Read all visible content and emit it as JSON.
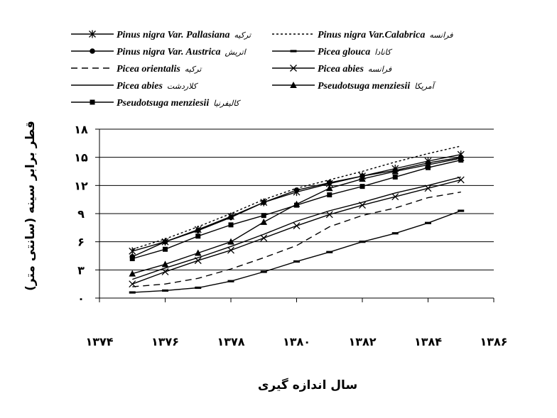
{
  "chart_data": {
    "type": "line",
    "xlabel": "سال اندازه گیری",
    "ylabel": "قطر برابر سینه (سانتی متر)",
    "xlim": [
      1374,
      1386
    ],
    "ylim": [
      0,
      18
    ],
    "x_ticks": [
      "۱۳۷۴",
      "۱۳۷۶",
      "۱۳۷۸",
      "۱۳۸۰",
      "۱۳۸۲",
      "۱۳۸۴",
      "۱۳۸۶"
    ],
    "y_ticks": [
      "۰",
      "۳",
      "۶",
      "۹",
      "۱۲",
      "۱۵",
      "۱۸"
    ],
    "grid": "horizontal",
    "legend_position": "top",
    "x": [
      1375,
      1376,
      1377,
      1378,
      1379,
      1380,
      1381,
      1382,
      1383,
      1384,
      1385
    ],
    "series": [
      {
        "name": "Pinus nigra Var. Pallasiana",
        "origin": "ترکیه",
        "style": "solid",
        "marker": "star",
        "values": [
          5.0,
          6.0,
          7.3,
          8.7,
          10.2,
          11.3,
          12.2,
          13.0,
          13.8,
          14.6,
          15.3
        ]
      },
      {
        "name": "Pinus nigra Var.Calabrica",
        "origin": "فرانسه",
        "style": "dotted",
        "marker": "none",
        "values": [
          5.2,
          6.3,
          7.6,
          9.0,
          10.5,
          11.7,
          12.6,
          13.5,
          14.5,
          15.4,
          16.2
        ]
      },
      {
        "name": "Pinus nigra Var. Austrica",
        "origin": "اتریش",
        "style": "solid",
        "marker": "circle",
        "values": [
          4.4,
          6.0,
          7.2,
          8.6,
          10.2,
          11.5,
          12.3,
          13.0,
          13.6,
          14.4,
          15.0
        ]
      },
      {
        "name": "Picea glouca",
        "origin": "کانادا",
        "style": "solid",
        "marker": "dash",
        "values": [
          0.6,
          0.8,
          1.1,
          1.8,
          2.8,
          3.9,
          4.9,
          6.0,
          6.9,
          8.0,
          9.3
        ]
      },
      {
        "name": "Picea orientalis",
        "origin": "ترکیه",
        "style": "dashed",
        "marker": "none",
        "values": [
          1.2,
          1.5,
          2.1,
          3.1,
          4.3,
          5.6,
          7.6,
          8.8,
          9.6,
          10.7,
          11.3
        ]
      },
      {
        "name": "Picea abies",
        "origin": "فرانسه",
        "style": "solid",
        "marker": "x",
        "values": [
          1.5,
          2.8,
          4.0,
          5.1,
          6.4,
          7.7,
          8.9,
          9.9,
          10.8,
          11.7,
          12.6
        ]
      },
      {
        "name": "Picea abies",
        "origin": "کلاردشت",
        "style": "solid",
        "marker": "none",
        "values": [
          2.0,
          3.2,
          4.3,
          5.5,
          6.8,
          8.2,
          9.3,
          10.2,
          11.2,
          12.0,
          12.9
        ]
      },
      {
        "name": "Pseudotsuga menziesii",
        "origin": "آمریکا",
        "style": "solid",
        "marker": "triangle",
        "values": [
          2.6,
          3.6,
          4.8,
          6.0,
          8.1,
          10.0,
          11.7,
          12.7,
          13.5,
          14.2,
          14.9
        ]
      },
      {
        "name": "Pseudotsuga menziesii",
        "origin": "کالیفرنیا",
        "style": "solid",
        "marker": "square",
        "values": [
          4.2,
          5.2,
          6.6,
          7.8,
          8.8,
          9.9,
          11.0,
          11.9,
          12.9,
          13.9,
          14.7
        ]
      }
    ]
  }
}
